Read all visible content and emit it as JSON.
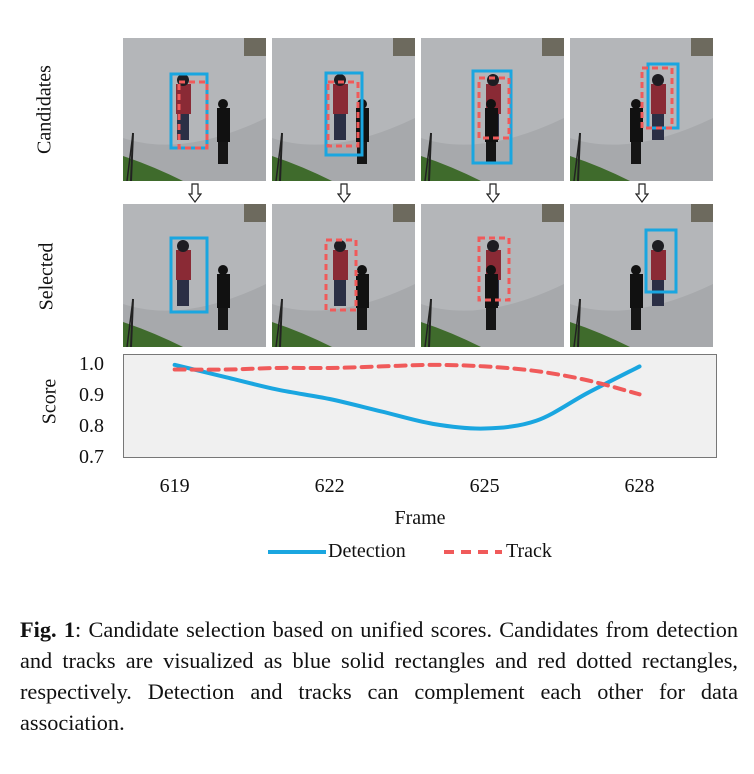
{
  "rows": {
    "candidates_label": "Candidates",
    "selected_label": "Selected"
  },
  "colors": {
    "detection": "#1aa6e0",
    "track": "#f05a5a",
    "plot_bg": "#f0f0f0",
    "frame_border": "#333333"
  },
  "images": {
    "candidates": [
      {
        "frame": "619",
        "boxes": [
          "detection",
          "track"
        ]
      },
      {
        "frame": "622",
        "boxes": [
          "detection",
          "track"
        ]
      },
      {
        "frame": "625",
        "boxes": [
          "detection",
          "track"
        ]
      },
      {
        "frame": "628",
        "boxes": [
          "detection",
          "track"
        ]
      }
    ],
    "selected": [
      {
        "frame": "619",
        "boxes": [
          "detection"
        ]
      },
      {
        "frame": "622",
        "boxes": [
          "track"
        ]
      },
      {
        "frame": "625",
        "boxes": [
          "track"
        ]
      },
      {
        "frame": "628",
        "boxes": [
          "detection"
        ]
      }
    ]
  },
  "chart_data": {
    "type": "line",
    "title": "",
    "xlabel": "Frame",
    "ylabel": "Score",
    "x_ticks": [
      "619",
      "622",
      "625",
      "628"
    ],
    "y_ticks": [
      "1.0",
      "0.9",
      "0.8",
      "0.7"
    ],
    "xlim": [
      618,
      629.5
    ],
    "ylim": [
      0.7,
      1.035
    ],
    "grid": false,
    "legend_position": "bottom-center",
    "series": [
      {
        "name": "Detection",
        "style": "solid",
        "x": [
          619,
          620,
          621,
          622,
          623,
          624,
          625,
          626,
          627,
          628
        ],
        "y": [
          1.0,
          0.96,
          0.92,
          0.89,
          0.85,
          0.81,
          0.795,
          0.82,
          0.91,
          0.995
        ]
      },
      {
        "name": "Track",
        "style": "dashed",
        "x": [
          619,
          620,
          621,
          622,
          623,
          624,
          625,
          626,
          627,
          628
        ],
        "y": [
          0.985,
          0.985,
          0.99,
          0.99,
          0.995,
          1.0,
          0.995,
          0.98,
          0.95,
          0.905
        ]
      }
    ]
  },
  "caption": {
    "label": "Fig. 1",
    "text": ": Candidate selection based on unified scores. Candidates from detection and tracks are visualized as blue solid rectangles and red dotted rectangles, respectively. Detection and tracks can complement each other for data association."
  }
}
